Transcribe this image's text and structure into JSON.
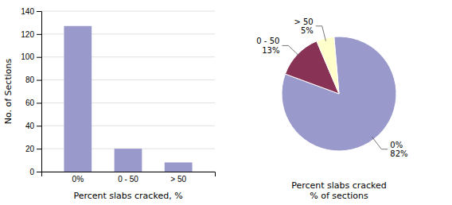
{
  "chart_data": [
    {
      "type": "bar",
      "categories": [
        "0%",
        "0 - 50",
        "> 50"
      ],
      "values": [
        127,
        20,
        8
      ],
      "color": "#9999cc",
      "xlabel": "Percent slabs cracked, %",
      "ylabel": "No. of Sections",
      "ylim": [
        0,
        140
      ],
      "yticks": [
        0,
        20,
        40,
        60,
        80,
        100,
        120,
        140
      ],
      "grid": true
    },
    {
      "type": "pie",
      "title": "Percent slabs cracked\n% of sections",
      "categories": [
        "0%",
        "0 - 50",
        "> 50"
      ],
      "values": [
        82,
        13,
        5
      ],
      "value_labels": [
        "82%",
        "13%",
        "5%"
      ],
      "colors": [
        "#9999cc",
        "#883355",
        "#ffffcc"
      ],
      "data_labels": true
    }
  ]
}
